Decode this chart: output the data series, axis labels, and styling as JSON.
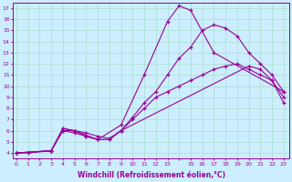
{
  "xlabel": "Windchill (Refroidissement éolien,°C)",
  "bg_color": "#cceeff",
  "line_color": "#990099",
  "grid_color": "#aaddcc",
  "lines": [
    {
      "x": [
        0,
        1,
        3,
        4,
        5,
        7,
        9,
        11,
        13,
        14,
        15,
        17,
        23
      ],
      "y": [
        4,
        4,
        4.2,
        6.2,
        6.0,
        5.2,
        6.5,
        11.0,
        15.8,
        17.2,
        16.8,
        13.0,
        9.5
      ]
    },
    {
      "x": [
        0,
        3,
        4,
        5,
        6,
        7,
        8,
        9,
        10,
        11,
        12,
        13,
        14,
        15,
        16,
        17,
        18,
        19,
        20,
        21,
        22,
        23
      ],
      "y": [
        4,
        4.2,
        6.0,
        6.0,
        5.8,
        5.5,
        5.3,
        6.0,
        7.2,
        8.5,
        9.5,
        11.0,
        12.5,
        13.5,
        15.0,
        15.5,
        15.2,
        14.5,
        13.0,
        12.0,
        11.0,
        9.5
      ]
    },
    {
      "x": [
        0,
        3,
        4,
        5,
        6,
        7,
        8,
        9,
        20,
        21,
        22,
        23
      ],
      "y": [
        4,
        4.2,
        6.2,
        6.0,
        5.5,
        5.2,
        5.2,
        6.0,
        11.8,
        11.5,
        10.5,
        9.0
      ]
    },
    {
      "x": [
        0,
        3,
        4,
        5,
        6,
        7,
        8,
        9,
        10,
        11,
        12,
        13,
        14,
        15,
        16,
        17,
        18,
        19,
        20,
        21,
        22,
        23
      ],
      "y": [
        4,
        4.2,
        6.0,
        5.8,
        5.5,
        5.2,
        5.2,
        6.0,
        7.0,
        8.0,
        9.0,
        9.5,
        10.0,
        10.5,
        11.0,
        11.5,
        11.8,
        12.0,
        11.5,
        11.0,
        10.5,
        8.5
      ]
    }
  ],
  "xtick_labels": [
    "0",
    "1",
    "2",
    "3",
    "4",
    "5",
    "6",
    "7",
    "8",
    "9",
    "10",
    "11",
    "12",
    "13",
    "",
    "15",
    "16",
    "17",
    "18",
    "19",
    "20",
    "21",
    "22",
    "23"
  ],
  "ytick_min": 4,
  "ytick_max": 17,
  "xlim": [
    -0.3,
    23.5
  ],
  "ylim": [
    3.5,
    17.5
  ]
}
